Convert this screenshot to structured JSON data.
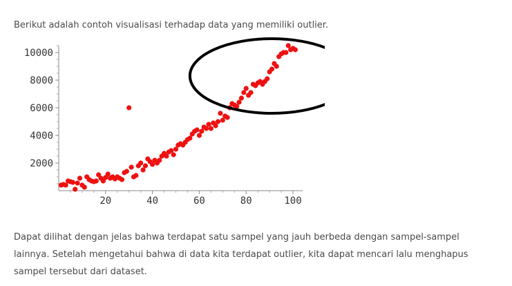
{
  "intro_text": "Berikut adalah contoh visualisasi terhadap data yang memiliki outlier.",
  "paragraph_lines": [
    "Dapat dilihat dengan jelas bahwa terdapat satu sampel yang jauh berbeda dengan sampel-sampel",
    "lainnya. Setelah mengetahui bahwa di data kita terdapat outlier, kita dapat mencari lalu menghapus",
    "sampel tersebut dari dataset."
  ],
  "chart_data": {
    "type": "scatter",
    "title": "",
    "xlabel": "",
    "ylabel": "",
    "xlim": [
      0,
      103
    ],
    "ylim": [
      0,
      10500
    ],
    "x_ticks": [
      20,
      40,
      60,
      80,
      100
    ],
    "y_ticks": [
      2000,
      4000,
      6000,
      8000,
      10000
    ],
    "grid": false,
    "point_color": "#ee1111",
    "annotation_color": "#000000",
    "annotation": {
      "shape": "ellipse",
      "center": [
        91,
        8300
      ],
      "radii": [
        35,
        2700
      ]
    },
    "points": [
      [
        1,
        400
      ],
      [
        2,
        450
      ],
      [
        3,
        400
      ],
      [
        4,
        700
      ],
      [
        5,
        650
      ],
      [
        6,
        600
      ],
      [
        7,
        100
      ],
      [
        8,
        550
      ],
      [
        9,
        900
      ],
      [
        10,
        400
      ],
      [
        11,
        250
      ],
      [
        12,
        1000
      ],
      [
        13,
        800
      ],
      [
        14,
        700
      ],
      [
        15,
        650
      ],
      [
        16,
        700
      ],
      [
        17,
        1150
      ],
      [
        18,
        900
      ],
      [
        19,
        700
      ],
      [
        20,
        950
      ],
      [
        21,
        1200
      ],
      [
        22,
        900
      ],
      [
        23,
        1000
      ],
      [
        24,
        850
      ],
      [
        25,
        1000
      ],
      [
        26,
        900
      ],
      [
        27,
        800
      ],
      [
        28,
        1300
      ],
      [
        29,
        1400
      ],
      [
        30,
        6000
      ],
      [
        31,
        1700
      ],
      [
        32,
        1000
      ],
      [
        33,
        1100
      ],
      [
        34,
        1800
      ],
      [
        35,
        2000
      ],
      [
        36,
        1500
      ],
      [
        37,
        1800
      ],
      [
        38,
        2300
      ],
      [
        39,
        2100
      ],
      [
        40,
        1900
      ],
      [
        41,
        2200
      ],
      [
        42,
        2000
      ],
      [
        43,
        2200
      ],
      [
        44,
        2500
      ],
      [
        45,
        2700
      ],
      [
        46,
        2500
      ],
      [
        47,
        2800
      ],
      [
        48,
        2900
      ],
      [
        49,
        2600
      ],
      [
        50,
        3000
      ],
      [
        51,
        3300
      ],
      [
        52,
        3400
      ],
      [
        53,
        3300
      ],
      [
        54,
        3500
      ],
      [
        55,
        3700
      ],
      [
        56,
        3800
      ],
      [
        57,
        4100
      ],
      [
        58,
        4300
      ],
      [
        59,
        4400
      ],
      [
        60,
        4000
      ],
      [
        61,
        4300
      ],
      [
        62,
        4600
      ],
      [
        63,
        4500
      ],
      [
        64,
        4800
      ],
      [
        65,
        4500
      ],
      [
        66,
        4900
      ],
      [
        67,
        4700
      ],
      [
        68,
        5000
      ],
      [
        69,
        5600
      ],
      [
        70,
        5100
      ],
      [
        71,
        5400
      ],
      [
        72,
        5300
      ],
      [
        73,
        6000
      ],
      [
        74,
        6300
      ],
      [
        75,
        6200
      ],
      [
        76,
        6100
      ],
      [
        77,
        6400
      ],
      [
        78,
        6700
      ],
      [
        79,
        7100
      ],
      [
        80,
        7400
      ],
      [
        81,
        6900
      ],
      [
        82,
        7100
      ],
      [
        83,
        7700
      ],
      [
        84,
        7600
      ],
      [
        85,
        7800
      ],
      [
        86,
        7900
      ],
      [
        87,
        7700
      ],
      [
        88,
        7900
      ],
      [
        89,
        8100
      ],
      [
        90,
        8600
      ],
      [
        91,
        8800
      ],
      [
        92,
        9200
      ],
      [
        93,
        9000
      ],
      [
        94,
        9700
      ],
      [
        95,
        9900
      ],
      [
        96,
        10000
      ],
      [
        97,
        10000
      ],
      [
        98,
        10500
      ],
      [
        99,
        10200
      ],
      [
        100,
        10300
      ],
      [
        101,
        10200
      ]
    ]
  }
}
